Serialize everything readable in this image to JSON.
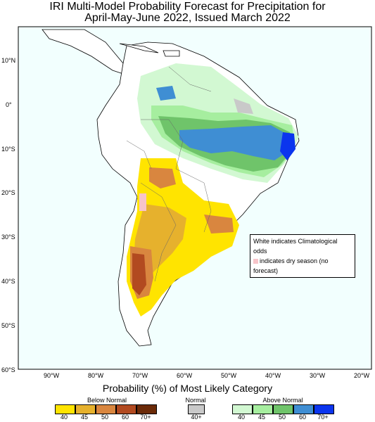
{
  "title_line1": "IRI Multi-Model Probability Forecast for Precipitation for",
  "title_line2": "April-May-June 2022, Issued March 2022",
  "x_axis_label": "Probability (%) of Most Likely Category",
  "lat_labels": [
    "10°N",
    "0°",
    "10°S",
    "20°S",
    "30°S",
    "40°S",
    "50°S",
    "60°S"
  ],
  "lon_labels": [
    "90°W",
    "80°W",
    "70°W",
    "60°W",
    "50°W",
    "40°W",
    "30°W",
    "20°W"
  ],
  "note_line1": "White indicates Climatological odds",
  "note_line2": "indicates dry season (no forecast)",
  "legend": {
    "below_title": "Below Normal",
    "normal_title": "Normal",
    "above_title": "Above Normal",
    "below_ticks": [
      "40",
      "45",
      "50",
      "60",
      "70+"
    ],
    "normal_tick": "40+",
    "above_ticks": [
      "40",
      "45",
      "50",
      "60",
      "70+"
    ],
    "below_colors": [
      "#ffe400",
      "#e6b12d",
      "#d9863f",
      "#b24a20",
      "#6b2a08"
    ],
    "normal_color": "#c9c9c9",
    "above_colors": [
      "#d2f8d2",
      "#a6ee9f",
      "#6fc46a",
      "#3f8ed3",
      "#0b35ee"
    ],
    "dry_color": "#f7c4c9"
  }
}
